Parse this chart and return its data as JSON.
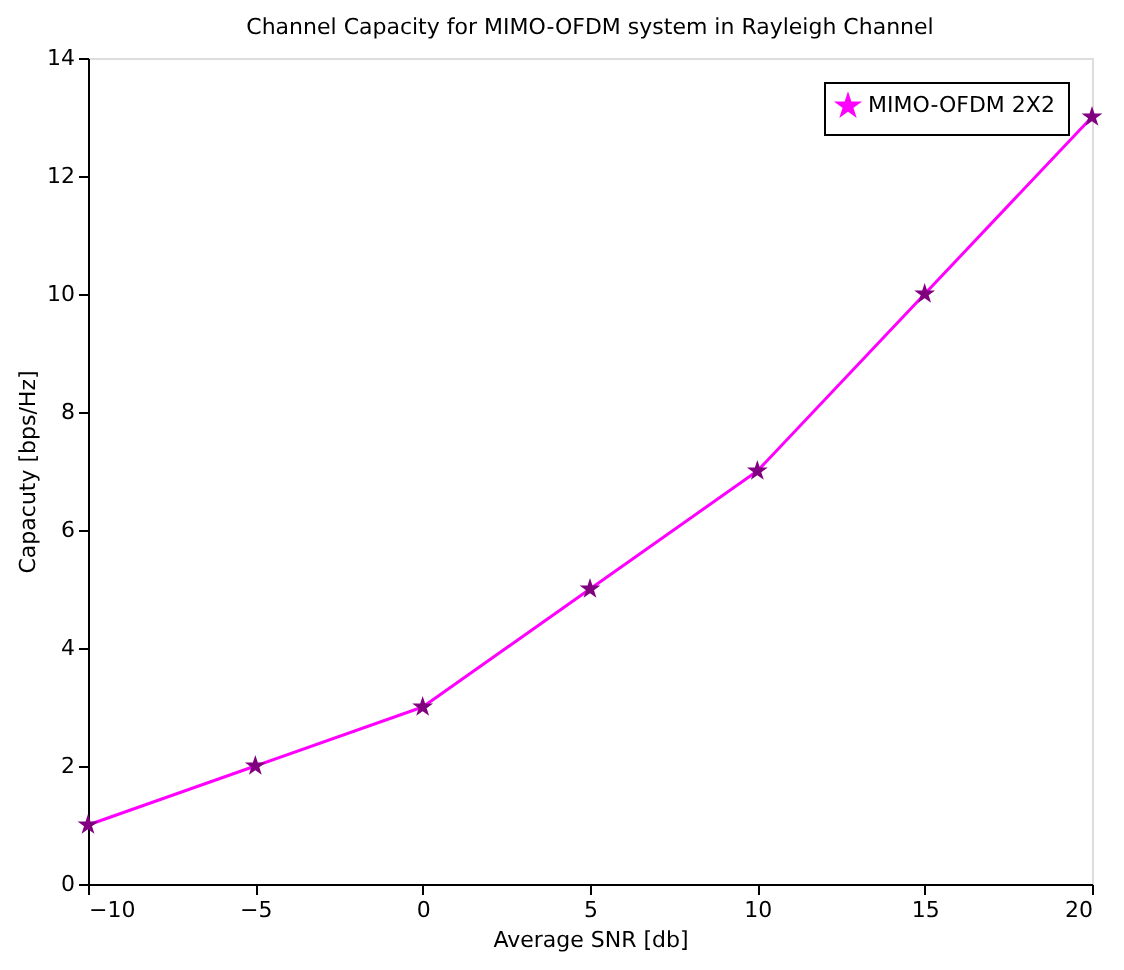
{
  "chart_data": {
    "type": "line",
    "title": "Channel Capacity for MIMO-OFDM system in Rayleigh Channel",
    "xlabel": "Average SNR [db]",
    "ylabel": "Capacuty [bps/Hz]",
    "x": [
      -10,
      -5,
      0,
      5,
      10,
      15,
      20
    ],
    "series": [
      {
        "name": "MIMO-OFDM 2X2",
        "color": "#ff00ff",
        "values": [
          1,
          2,
          3,
          5,
          7,
          10,
          13
        ]
      }
    ],
    "xlim": [
      -10,
      20
    ],
    "xticks": [
      -10,
      -5,
      0,
      5,
      10,
      15,
      20
    ],
    "ylim": [
      0,
      14
    ],
    "yticks": [
      0,
      2,
      4,
      6,
      8,
      10,
      12,
      14
    ],
    "grid": false,
    "legend": "top right",
    "marker": "star",
    "line_style": "solid"
  }
}
